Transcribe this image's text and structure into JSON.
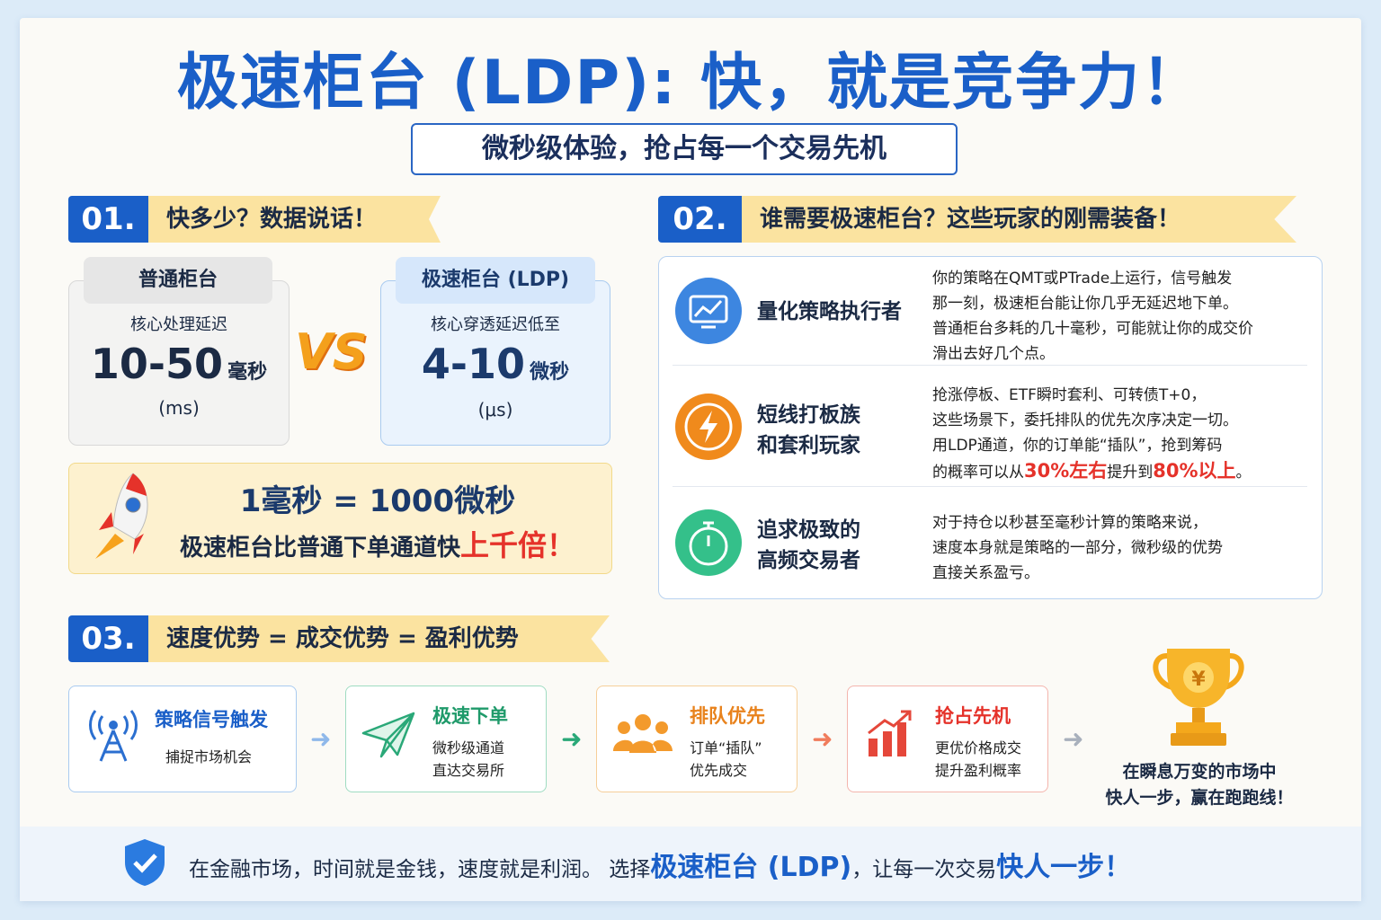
{
  "header": {
    "title": "极速柜台 (LDP): 快，就是竞争力！",
    "subtitle": "微秒级体验，抢占每一个交易先机"
  },
  "section1": {
    "number": "01.",
    "heading": "快多少？数据说话！",
    "normal": {
      "label": "普通柜台",
      "desc": "核心处理延迟",
      "value": "10-50",
      "unit": "毫秒",
      "unit_abbr": "(ms)"
    },
    "vs": "VS",
    "fast": {
      "label": "极速柜台 (LDP)",
      "desc": "核心穿透延迟低至",
      "value": "4-10",
      "unit": "微秒",
      "unit_abbr": "(μs)"
    },
    "callout": {
      "line1": "1毫秒 = 1000微秒",
      "line2_prefix": "极速柜台比普通下单通道快",
      "line2_highlight": "上千倍！"
    }
  },
  "section2": {
    "number": "02.",
    "heading": "谁需要极速柜台？这些玩家的刚需装备！",
    "players": [
      {
        "name_lines": [
          "量化策略执行者"
        ],
        "lines": [
          "你的策略在QMT或PTrade上运行，信号触发",
          "那一刻，极速柜台能让你几乎无延迟地下单。",
          "普通柜台多耗的几十毫秒，可能就让你的成交价",
          "滑出去好几个点。"
        ]
      },
      {
        "name_lines": [
          "短线打板族",
          "和套利玩家"
        ],
        "lines": [
          "抢涨停板、ETF瞬时套利、可转债T+0，",
          "这些场景下，委托排队的优先次序决定一切。",
          "用LDP通道，你的订单能“插队”，抢到筹码"
        ],
        "last_line_parts": [
          "的概率可以从",
          "30%左右",
          "提升到",
          "80%以上",
          "。"
        ]
      },
      {
        "name_lines": [
          "追求极致的",
          "高频交易者"
        ],
        "lines": [
          "对于持仓以秒甚至毫秒计算的策略来说，",
          "速度本身就是策略的一部分，微秒级的优势",
          "直接关系盈亏。"
        ]
      }
    ]
  },
  "section3": {
    "number": "03.",
    "heading": "速度优势 = 成交优势 = 盈利优势",
    "steps": [
      {
        "title": "策略信号触发",
        "lines": [
          "捕捉市场机会"
        ]
      },
      {
        "title": "极速下单",
        "lines": [
          "微秒级通道",
          "直达交易所"
        ]
      },
      {
        "title": "排队优先",
        "lines": [
          "订单“插队”",
          "优先成交"
        ]
      },
      {
        "title": "抢占先机",
        "lines": [
          "更优价格成交",
          "提升盈利概率"
        ]
      }
    ],
    "trophy_symbol": "¥",
    "conclusion": [
      "在瞬息万变的市场中",
      "快人一步，赢在跑跑线！"
    ]
  },
  "footer": {
    "prefix": "在金融市场，时间就是金钱，速度就是利润。 选择",
    "highlight1": "极速柜台 (LDP)",
    "middle": "，让每一次交易",
    "highlight2": "快人一步！"
  }
}
